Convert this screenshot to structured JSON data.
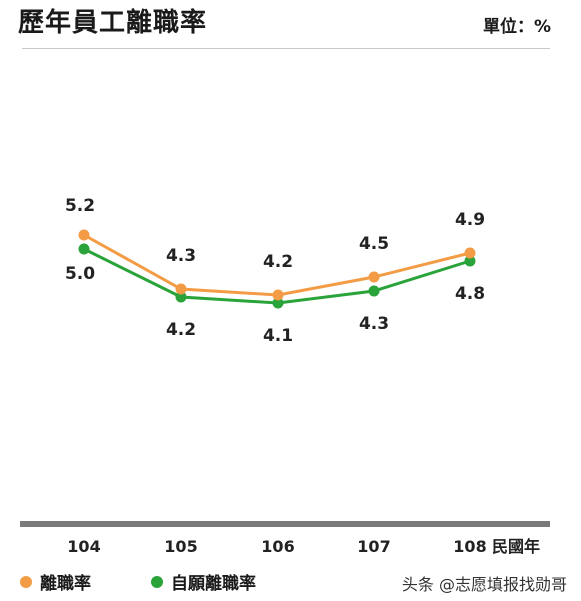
{
  "header": {
    "title": "歷年員工離職率",
    "unit": "單位：%"
  },
  "colors": {
    "series1": "#f39c45",
    "series2": "#2aa33a",
    "axis": "#777777"
  },
  "chart_data": {
    "type": "line",
    "categories": [
      "104",
      "105",
      "106",
      "107",
      "108"
    ],
    "x_unit_label": "民國年",
    "ylim": [
      3,
      6
    ],
    "grid": false,
    "legend_position": "bottom-left",
    "series": [
      {
        "name": "離職率",
        "values": [
          5.2,
          4.3,
          4.2,
          4.5,
          4.9
        ],
        "labels": [
          "5.2",
          "4.3",
          "4.2",
          "4.5",
          "4.9"
        ]
      },
      {
        "name": "自願離職率",
        "values": [
          5.0,
          4.2,
          4.1,
          4.3,
          4.8
        ],
        "labels": [
          "5.0",
          "4.2",
          "4.1",
          "4.3",
          "4.8"
        ]
      }
    ]
  },
  "watermark": "头条 @志愿填报找勋哥"
}
